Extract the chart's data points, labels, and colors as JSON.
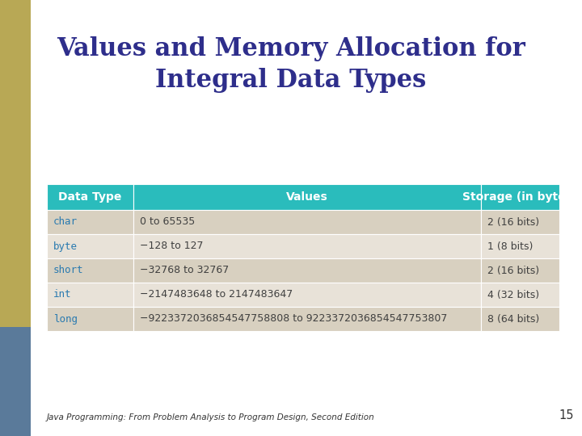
{
  "title": "Values and Memory Allocation for\nIntegral Data Types",
  "title_color": "#2E2E8B",
  "title_fontsize": 22,
  "bg_color": "#FFFFFF",
  "left_bar_gold": "#B8A855",
  "left_bar_blue": "#5A7A9A",
  "table_header_bg": "#2ABCBC",
  "table_header_text": "#FFFFFF",
  "table_header_fontsize": 10,
  "table_row_bg_odd": "#D8D0C0",
  "table_row_bg_even": "#E8E2D8",
  "table_type_color": "#2A7AB0",
  "table_value_color": "#404040",
  "table_storage_color": "#404040",
  "table_fontsize": 9,
  "headers": [
    "Data Type",
    "Values",
    "Storage (in bytes)"
  ],
  "rows": [
    [
      "char",
      "0 to 65535",
      "2 (16 bits)"
    ],
    [
      "byte",
      "−128 to 127",
      "1 (8 bits)"
    ],
    [
      "short",
      "−32768 to 32767",
      "2 (16 bits)"
    ],
    [
      "int",
      "−2147483648 to 2147483647",
      "4 (32 bits)"
    ],
    [
      "long",
      "−9223372036854547758808 to 9223372036854547753807",
      "8 (64 bits)"
    ]
  ],
  "footer_text": "Java Programming: From Problem Analysis to Program Design, Second Edition",
  "footer_page": "15",
  "footer_fontsize": 7.5
}
